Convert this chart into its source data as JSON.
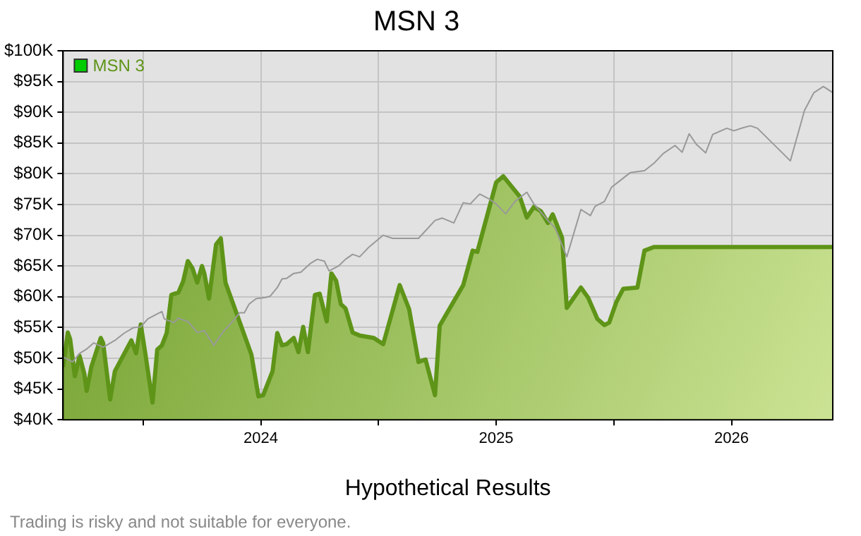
{
  "chart_data": {
    "type": "area",
    "title": "MSN 3",
    "xlabel": "Hypothetical Results",
    "annotations": [
      "Trading is risky and not suitable for everyone."
    ],
    "xlim": [
      2023.16,
      2026.43
    ],
    "xticks": [
      {
        "value": 2023.5,
        "label": null
      },
      2024,
      {
        "value": 2024.5,
        "label": null
      },
      2025,
      {
        "value": 2025.5,
        "label": null
      },
      2026
    ],
    "ylim": [
      40000,
      100000
    ],
    "yticks": [
      {
        "value": 40000,
        "label": "$40K"
      },
      {
        "value": 45000,
        "label": "$45K"
      },
      {
        "value": 50000,
        "label": "$50K"
      },
      {
        "value": 55000,
        "label": "$55K"
      },
      {
        "value": 60000,
        "label": "$60K"
      },
      {
        "value": 65000,
        "label": "$65K"
      },
      {
        "value": 70000,
        "label": "$70K"
      },
      {
        "value": 75000,
        "label": "$75K"
      },
      {
        "value": 80000,
        "label": "$80K"
      },
      {
        "value": 85000,
        "label": "$85K"
      },
      {
        "value": 90000,
        "label": "$90K"
      },
      {
        "value": 95000,
        "label": "$95K"
      },
      {
        "value": 100000,
        "label": "$100K"
      }
    ],
    "grid": true,
    "legend": "top left",
    "marker": "none",
    "series": [
      {
        "name": "MSN 3",
        "type": "area",
        "color": "#5e9418",
        "x": [
          2023.16,
          2023.18,
          2023.19,
          2023.21,
          2023.23,
          2023.25,
          2023.26,
          2023.28,
          2023.32,
          2023.33,
          2023.36,
          2023.38,
          2023.45,
          2023.47,
          2023.49,
          2023.51,
          2023.54,
          2023.56,
          2023.58,
          2023.6,
          2023.62,
          2023.65,
          2023.67,
          2023.69,
          2023.71,
          2023.73,
          2023.75,
          2023.76,
          2023.78,
          2023.81,
          2023.83,
          2023.85,
          2023.96,
          2023.99,
          2024.01,
          2024.05,
          2024.07,
          2024.09,
          2024.11,
          2024.14,
          2024.16,
          2024.18,
          2024.2,
          2024.23,
          2024.25,
          2024.28,
          2024.3,
          2024.32,
          2024.34,
          2024.36,
          2024.39,
          2024.42,
          2024.48,
          2024.52,
          2024.55,
          2024.59,
          2024.63,
          2024.67,
          2024.7,
          2024.74,
          2024.76,
          2024.86,
          2024.9,
          2024.92,
          2025.0,
          2025.03,
          2025.1,
          2025.13,
          2025.16,
          2025.19,
          2025.22,
          2025.24,
          2025.28,
          2025.3,
          2025.36,
          2025.39,
          2025.43,
          2025.46,
          2025.48,
          2025.51,
          2025.54,
          2025.6,
          2025.63,
          2025.67,
          2026.43
        ],
        "values": [
          48600,
          54200,
          53100,
          47100,
          50400,
          47500,
          44700,
          48600,
          53300,
          52500,
          43300,
          47900,
          52900,
          50800,
          55500,
          50600,
          42800,
          51400,
          52100,
          54100,
          60300,
          60700,
          62500,
          65800,
          64600,
          62300,
          65000,
          63800,
          59700,
          68500,
          69500,
          62300,
          50600,
          43800,
          44000,
          47900,
          54100,
          52100,
          52300,
          53300,
          51000,
          55100,
          51000,
          60300,
          60500,
          56000,
          63800,
          62600,
          58800,
          58100,
          54200,
          53700,
          53300,
          52300,
          56400,
          61900,
          58000,
          49400,
          49800,
          44000,
          55300,
          61900,
          67500,
          67300,
          78600,
          79600,
          76300,
          72900,
          74600,
          73900,
          72000,
          73400,
          69600,
          58200,
          61500,
          59900,
          56400,
          55400,
          55800,
          59100,
          61300,
          61500,
          67500,
          68100,
          68100
        ]
      },
      {
        "type": "line",
        "color": "#999999",
        "x": [
          2023.16,
          2023.2,
          2023.23,
          2023.26,
          2023.29,
          2023.33,
          2023.38,
          2023.42,
          2023.46,
          2023.49,
          2023.52,
          2023.55,
          2023.58,
          2023.59,
          2023.63,
          2023.65,
          2023.69,
          2023.73,
          2023.76,
          2023.8,
          2023.84,
          2023.89,
          2023.91,
          2023.93,
          2023.95,
          2023.98,
          2024.02,
          2024.04,
          2024.07,
          2024.09,
          2024.11,
          2024.14,
          2024.17,
          2024.21,
          2024.24,
          2024.27,
          2024.29,
          2024.33,
          2024.36,
          2024.39,
          2024.42,
          2024.46,
          2024.52,
          2024.56,
          2024.67,
          2024.74,
          2024.77,
          2024.82,
          2024.86,
          2024.89,
          2024.93,
          2024.97,
          2025.0,
          2025.04,
          2025.08,
          2025.13,
          2025.16,
          2025.22,
          2025.25,
          2025.3,
          2025.36,
          2025.4,
          2025.42,
          2025.46,
          2025.49,
          2025.53,
          2025.57,
          2025.63,
          2025.67,
          2025.71,
          2025.76,
          2025.79,
          2025.82,
          2025.85,
          2025.89,
          2025.92,
          2025.98,
          2026.01,
          2026.05,
          2026.08,
          2026.11,
          2026.25,
          2026.31,
          2026.35,
          2026.39,
          2026.43
        ],
        "values": [
          50200,
          49400,
          50800,
          51500,
          52500,
          51800,
          52900,
          54100,
          55000,
          55100,
          56400,
          57000,
          57600,
          56400,
          55800,
          56500,
          56000,
          54200,
          54500,
          52100,
          54300,
          56400,
          57400,
          57400,
          58800,
          59700,
          59900,
          60100,
          61500,
          62900,
          63000,
          63800,
          64000,
          65400,
          66100,
          65800,
          64200,
          65000,
          66100,
          66900,
          66500,
          68100,
          70000,
          69500,
          69500,
          72400,
          72800,
          72000,
          75300,
          75100,
          76700,
          75900,
          75100,
          73500,
          75500,
          77000,
          75100,
          72400,
          71200,
          66500,
          74200,
          73200,
          74700,
          75500,
          77800,
          79000,
          80200,
          80500,
          81700,
          83300,
          84600,
          83500,
          86500,
          84800,
          83400,
          86400,
          87400,
          87000,
          87500,
          87800,
          87400,
          82100,
          90300,
          93200,
          94200,
          93200
        ]
      }
    ]
  }
}
